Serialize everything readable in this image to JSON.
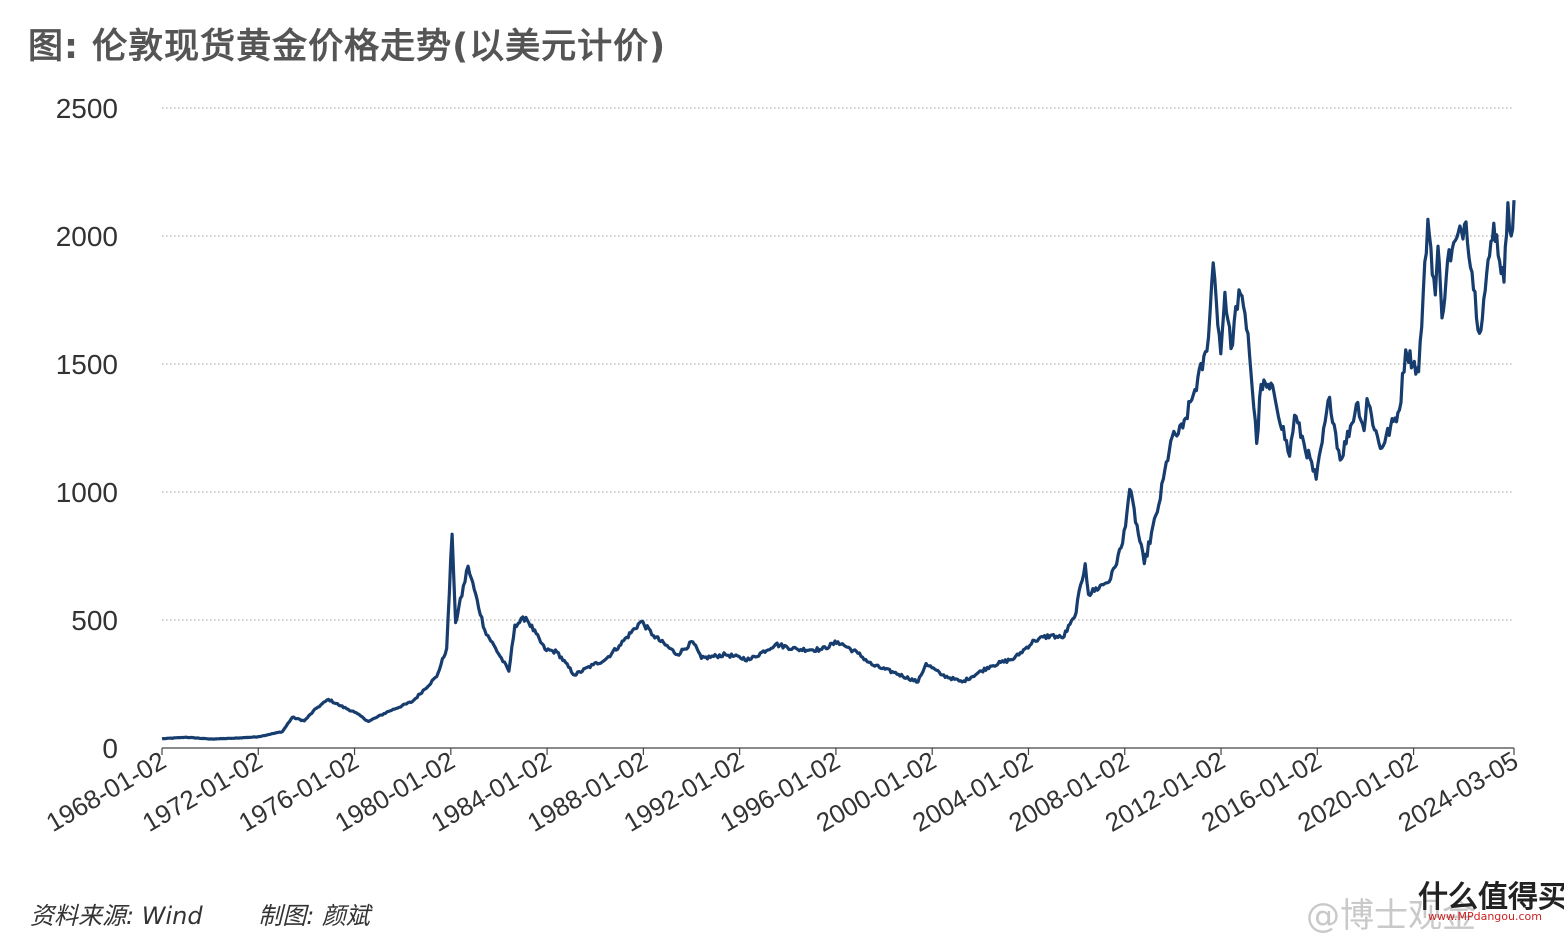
{
  "title": "图: 伦敦现货黄金价格走势(以美元计价)",
  "footer": {
    "source": "资料来源: Wind",
    "author": "制图: 颜斌"
  },
  "watermark": {
    "handle": "@博士观金",
    "brand": "什么值得买购",
    "url": "www.MPdangou.com"
  },
  "colors": {
    "line": "#173c6e",
    "grid": "#9a9a9a",
    "text": "#333333"
  },
  "chart_data": {
    "type": "line",
    "title": "伦敦现货黄金价格走势(以美元计价)",
    "xlabel": "",
    "ylabel": "",
    "ylim": [
      0,
      2500
    ],
    "yticks": [
      0,
      500,
      1000,
      1500,
      2000,
      2500
    ],
    "grid": "horizontal dotted",
    "xtick_labels": [
      "1968-01-02",
      "1972-01-02",
      "1976-01-02",
      "1980-01-02",
      "1984-01-02",
      "1988-01-02",
      "1992-01-02",
      "1996-01-02",
      "2000-01-02",
      "2004-01-02",
      "2008-01-02",
      "2012-01-02",
      "2016-01-02",
      "2020-01-02",
      "2024-03-05"
    ],
    "series": [
      {
        "values": [
          [
            "1968-01-02",
            36
          ],
          [
            "1969-01-02",
            42
          ],
          [
            "1970-01-02",
            35
          ],
          [
            "1971-01-02",
            38
          ],
          [
            "1972-01-02",
            44
          ],
          [
            "1973-01-02",
            64
          ],
          [
            "1973-06-01",
            120
          ],
          [
            "1973-12-01",
            106
          ],
          [
            "1974-06-01",
            155
          ],
          [
            "1974-12-01",
            190
          ],
          [
            "1975-06-01",
            165
          ],
          [
            "1976-01-02",
            140
          ],
          [
            "1976-08-01",
            104
          ],
          [
            "1977-06-01",
            143
          ],
          [
            "1978-06-01",
            182
          ],
          [
            "1979-06-01",
            279
          ],
          [
            "1979-11-01",
            390
          ],
          [
            "1980-01-21",
            835
          ],
          [
            "1980-03-15",
            490
          ],
          [
            "1980-09-20",
            710
          ],
          [
            "1981-06-01",
            460
          ],
          [
            "1982-06-01",
            300
          ],
          [
            "1982-09-01",
            480
          ],
          [
            "1983-02-15",
            510
          ],
          [
            "1983-12-01",
            385
          ],
          [
            "1984-06-01",
            375
          ],
          [
            "1985-02-20",
            285
          ],
          [
            "1985-12-01",
            325
          ],
          [
            "1986-06-01",
            345
          ],
          [
            "1987-01-01",
            400
          ],
          [
            "1987-12-01",
            495
          ],
          [
            "1988-06-01",
            440
          ],
          [
            "1989-06-01",
            365
          ],
          [
            "1990-01-20",
            415
          ],
          [
            "1990-06-01",
            350
          ],
          [
            "1991-06-01",
            365
          ],
          [
            "1992-06-01",
            345
          ],
          [
            "1993-07-01",
            405
          ],
          [
            "1994-06-01",
            385
          ],
          [
            "1995-06-01",
            385
          ],
          [
            "1996-02-01",
            415
          ],
          [
            "1996-12-01",
            370
          ],
          [
            "1997-07-01",
            325
          ],
          [
            "1998-06-01",
            295
          ],
          [
            "1999-06-01",
            258
          ],
          [
            "1999-10-01",
            330
          ],
          [
            "2000-06-01",
            285
          ],
          [
            "2001-04-01",
            258
          ],
          [
            "2002-06-01",
            320
          ],
          [
            "2003-06-01",
            350
          ],
          [
            "2004-04-01",
            420
          ],
          [
            "2004-12-01",
            440
          ],
          [
            "2005-06-01",
            430
          ],
          [
            "2005-12-01",
            510
          ],
          [
            "2006-05-12",
            720
          ],
          [
            "2006-07-01",
            600
          ],
          [
            "2007-06-01",
            660
          ],
          [
            "2007-12-01",
            800
          ],
          [
            "2008-03-17",
            1010
          ],
          [
            "2008-10-24",
            720
          ],
          [
            "2009-06-01",
            950
          ],
          [
            "2009-12-01",
            1200
          ],
          [
            "2010-06-01",
            1250
          ],
          [
            "2010-12-01",
            1400
          ],
          [
            "2011-06-01",
            1550
          ],
          [
            "2011-09-06",
            1895
          ],
          [
            "2011-12-29",
            1540
          ],
          [
            "2012-03-01",
            1780
          ],
          [
            "2012-06-01",
            1560
          ],
          [
            "2012-10-01",
            1790
          ],
          [
            "2013-02-15",
            1620
          ],
          [
            "2013-06-27",
            1190
          ],
          [
            "2013-09-01",
            1420
          ],
          [
            "2014-03-14",
            1390
          ],
          [
            "2014-11-07",
            1140
          ],
          [
            "2015-01-22",
            1300
          ],
          [
            "2015-12-17",
            1050
          ],
          [
            "2016-07-06",
            1370
          ],
          [
            "2016-12-15",
            1125
          ],
          [
            "2017-09-08",
            1350
          ],
          [
            "2017-12-12",
            1240
          ],
          [
            "2018-01-25",
            1365
          ],
          [
            "2018-08-16",
            1170
          ],
          [
            "2019-06-01",
            1320
          ],
          [
            "2019-09-04",
            1555
          ],
          [
            "2020-03-19",
            1470
          ],
          [
            "2020-08-06",
            2065
          ],
          [
            "2020-11-27",
            1770
          ],
          [
            "2021-01-06",
            1960
          ],
          [
            "2021-03-08",
            1680
          ],
          [
            "2021-06-01",
            1905
          ],
          [
            "2022-03-08",
            2055
          ],
          [
            "2022-09-28",
            1620
          ],
          [
            "2023-05-04",
            2050
          ],
          [
            "2023-10-05",
            1820
          ],
          [
            "2023-12-04",
            2130
          ],
          [
            "2024-01-22",
            2000
          ],
          [
            "2024-03-05",
            2140
          ]
        ]
      }
    ]
  }
}
